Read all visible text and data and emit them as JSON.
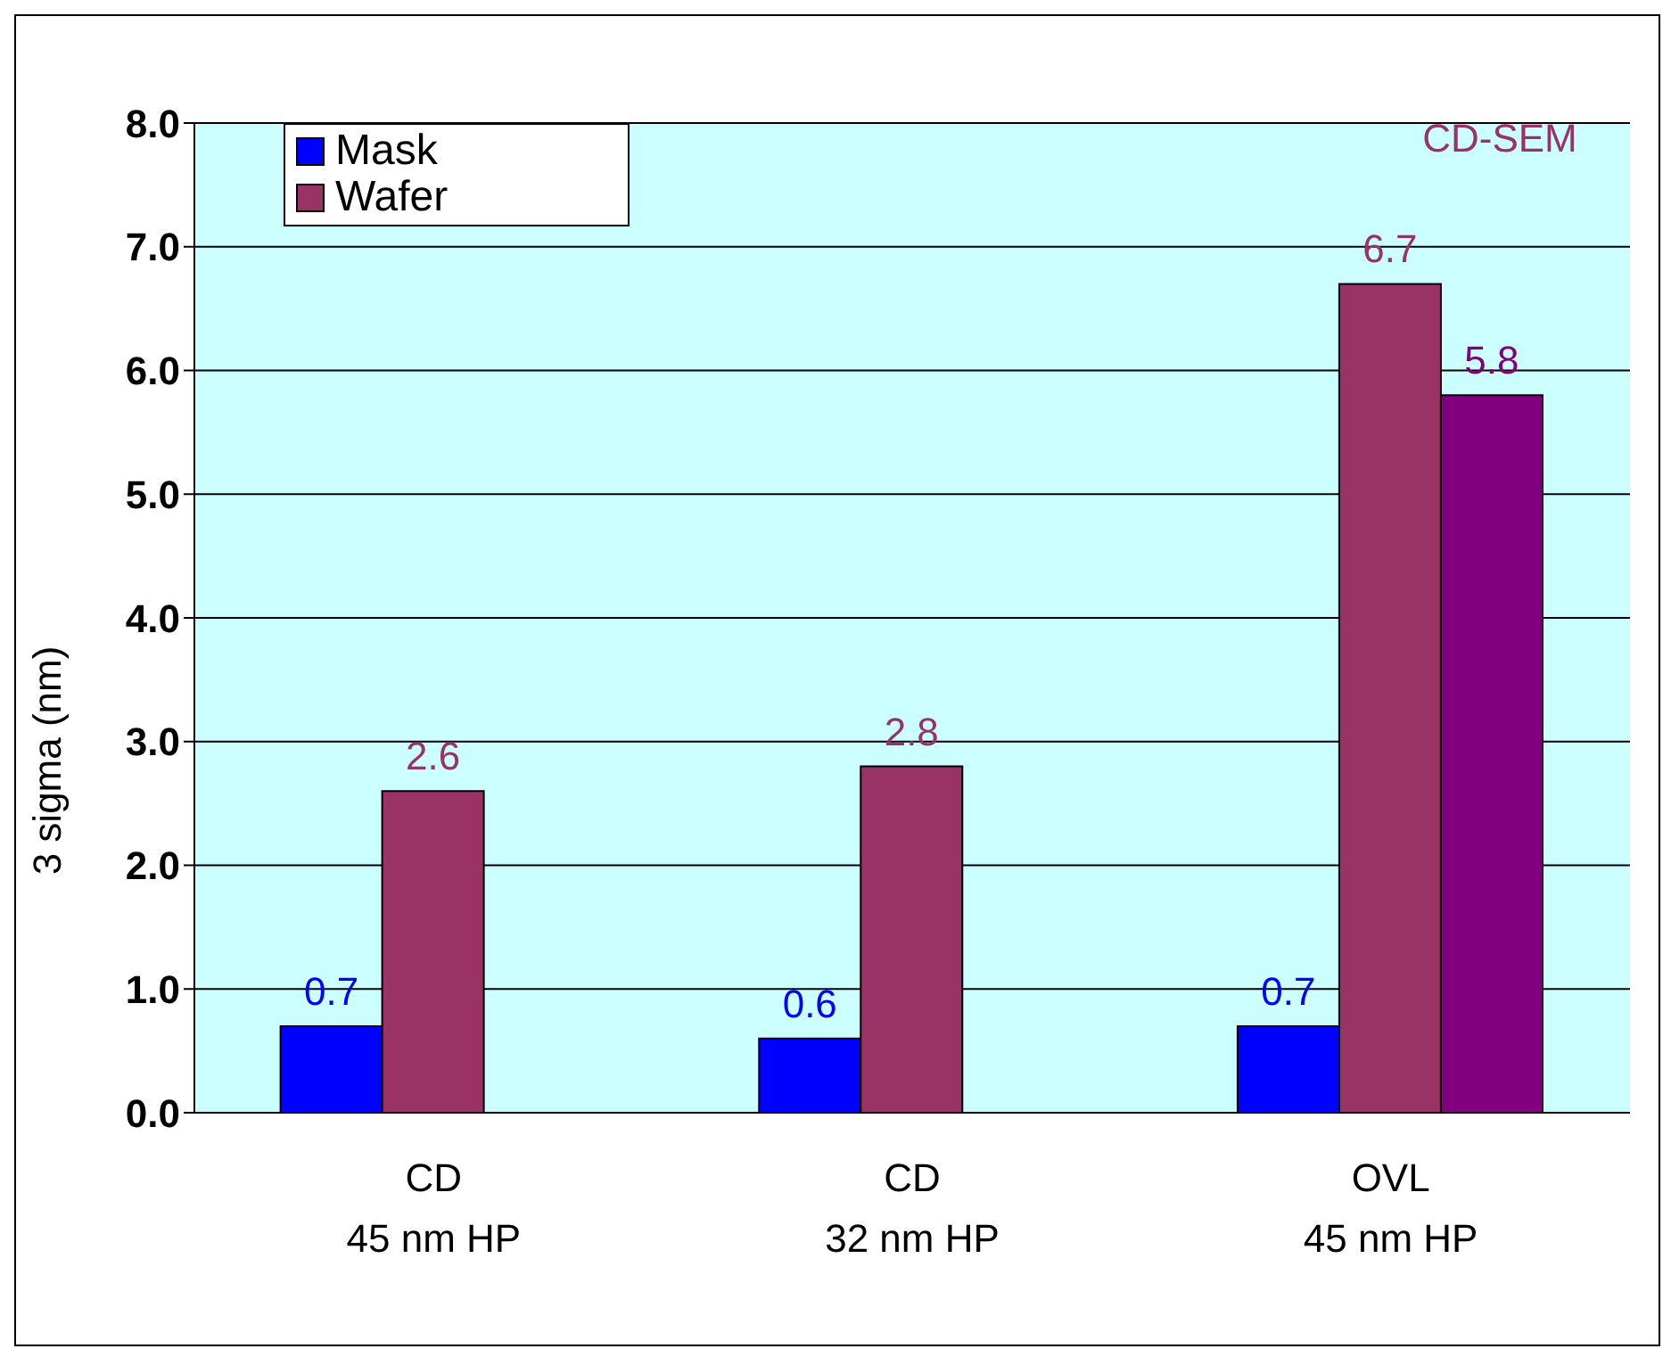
{
  "chart_data": {
    "type": "bar",
    "ylabel": "3 sigma (nm)",
    "categories": [
      "CD\n45 nm HP",
      "CD\n32 nm HP",
      "OVL\n45 nm HP"
    ],
    "series": [
      {
        "name": "Mask",
        "color": "#0000ff",
        "values": [
          0.7,
          0.6,
          0.7
        ]
      },
      {
        "name": "Wafer",
        "color": "#993366",
        "values": [
          2.6,
          2.8,
          6.7
        ]
      },
      {
        "color": "#800080",
        "values": [
          null,
          null,
          5.8
        ]
      }
    ],
    "ylim": [
      0,
      8
    ],
    "yticks": [
      {
        "value": 0,
        "label": "0.0"
      },
      {
        "value": 1,
        "label": "1.0"
      },
      {
        "value": 2,
        "label": "2.0"
      },
      {
        "value": 3,
        "label": "3.0"
      },
      {
        "value": 4,
        "label": "4.0"
      },
      {
        "value": 5,
        "label": "5.0"
      },
      {
        "value": 6,
        "label": "6.0"
      },
      {
        "value": 7,
        "label": "7.0"
      },
      {
        "value": 8,
        "label": "8.0"
      }
    ],
    "grid": "y",
    "legend": "top left",
    "data_labels": true,
    "annotations": [
      "CD-SEM"
    ]
  }
}
